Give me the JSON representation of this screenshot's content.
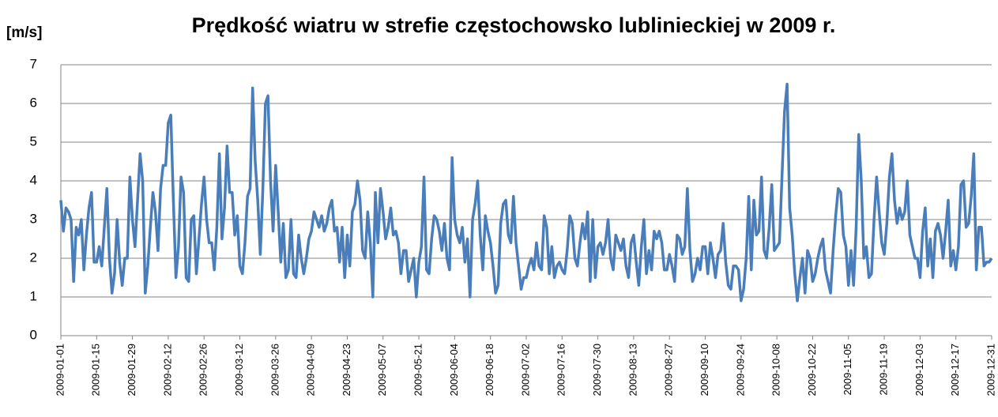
{
  "chart_data": {
    "type": "line",
    "title": "Prędkość wiatru w strefie częstochowsko lublinieckiej w 2009 r.",
    "y_label": "[m/s]",
    "categories": [
      "2009-01-01",
      null,
      null,
      null,
      null,
      null,
      null,
      null,
      null,
      null,
      null,
      null,
      null,
      null,
      "2009-01-15",
      null,
      null,
      null,
      null,
      null,
      null,
      null,
      null,
      null,
      null,
      null,
      null,
      null,
      "2009-01-29",
      null,
      null,
      null,
      null,
      null,
      null,
      null,
      null,
      null,
      null,
      null,
      null,
      null,
      "2009-02-12",
      null,
      null,
      null,
      null,
      null,
      null,
      null,
      null,
      null,
      null,
      null,
      null,
      null,
      "2009-02-26",
      null,
      null,
      null,
      null,
      null,
      null,
      null,
      null,
      null,
      null,
      null,
      null,
      null,
      "2009-03-12",
      null,
      null,
      null,
      null,
      null,
      null,
      null,
      null,
      null,
      null,
      null,
      null,
      null,
      "2009-03-26",
      null,
      null,
      null,
      null,
      null,
      null,
      null,
      null,
      null,
      null,
      null,
      null,
      null,
      "2009-04-09",
      null,
      null,
      null,
      null,
      null,
      null,
      null,
      null,
      null,
      null,
      null,
      null,
      null,
      "2009-04-23",
      null,
      null,
      null,
      null,
      null,
      null,
      null,
      null,
      null,
      null,
      null,
      null,
      null,
      "2009-05-07",
      null,
      null,
      null,
      null,
      null,
      null,
      null,
      null,
      null,
      null,
      null,
      null,
      null,
      "2009-05-21",
      null,
      null,
      null,
      null,
      null,
      null,
      null,
      null,
      null,
      null,
      null,
      null,
      null,
      "2009-06-04",
      null,
      null,
      null,
      null,
      null,
      null,
      null,
      null,
      null,
      null,
      null,
      null,
      null,
      "2009-06-18",
      null,
      null,
      null,
      null,
      null,
      null,
      null,
      null,
      null,
      null,
      null,
      null,
      null,
      "2009-07-02",
      null,
      null,
      null,
      null,
      null,
      null,
      null,
      null,
      null,
      null,
      null,
      null,
      null,
      "2009-07-16",
      null,
      null,
      null,
      null,
      null,
      null,
      null,
      null,
      null,
      null,
      null,
      null,
      null,
      "2009-07-30",
      null,
      null,
      null,
      null,
      null,
      null,
      null,
      null,
      null,
      null,
      null,
      null,
      null,
      "2009-08-13",
      null,
      null,
      null,
      null,
      null,
      null,
      null,
      null,
      null,
      null,
      null,
      null,
      null,
      "2009-08-27",
      null,
      null,
      null,
      null,
      null,
      null,
      null,
      null,
      null,
      null,
      null,
      null,
      null,
      "2009-09-10",
      null,
      null,
      null,
      null,
      null,
      null,
      null,
      null,
      null,
      null,
      null,
      null,
      null,
      "2009-09-24",
      null,
      null,
      null,
      null,
      null,
      null,
      null,
      null,
      null,
      null,
      null,
      null,
      null,
      "2009-10-08",
      null,
      null,
      null,
      null,
      null,
      null,
      null,
      null,
      null,
      null,
      null,
      null,
      null,
      "2009-10-22",
      null,
      null,
      null,
      null,
      null,
      null,
      null,
      null,
      null,
      null,
      null,
      null,
      null,
      "2009-11-05",
      null,
      null,
      null,
      null,
      null,
      null,
      null,
      null,
      null,
      null,
      null,
      null,
      null,
      "2009-11-19",
      null,
      null,
      null,
      null,
      null,
      null,
      null,
      null,
      null,
      null,
      null,
      null,
      null,
      "2009-12-03",
      null,
      null,
      null,
      null,
      null,
      null,
      null,
      null,
      null,
      null,
      null,
      null,
      null,
      "2009-12-17",
      null,
      null,
      null,
      null,
      null,
      null,
      null,
      null,
      null,
      null,
      null,
      null,
      null,
      "2009-12-31"
    ],
    "values": [
      3.5,
      2.7,
      3.3,
      3.2,
      3.0,
      1.4,
      2.8,
      2.6,
      3.0,
      1.7,
      2.6,
      3.3,
      3.7,
      1.9,
      1.9,
      2.3,
      1.8,
      2.8,
      3.8,
      2.0,
      1.1,
      1.6,
      3.0,
      1.9,
      1.3,
      2.0,
      2.0,
      4.1,
      3.0,
      2.3,
      3.5,
      4.7,
      4.0,
      1.1,
      1.8,
      2.8,
      3.7,
      3.2,
      2.2,
      3.8,
      4.4,
      4.4,
      5.5,
      5.7,
      3.5,
      1.5,
      2.3,
      4.1,
      3.7,
      1.5,
      1.4,
      3.0,
      3.1,
      1.6,
      2.5,
      3.4,
      4.1,
      3.0,
      2.4,
      2.4,
      1.7,
      2.8,
      4.7,
      2.5,
      3.3,
      4.9,
      3.7,
      3.7,
      2.6,
      3.1,
      1.8,
      1.6,
      2.4,
      3.6,
      3.8,
      6.4,
      4.5,
      3.5,
      2.1,
      3.8,
      6.0,
      6.2,
      4.0,
      2.7,
      4.4,
      3.2,
      1.9,
      2.9,
      1.5,
      1.7,
      3.0,
      1.6,
      1.5,
      2.6,
      2.0,
      1.6,
      2.0,
      2.5,
      2.7,
      3.2,
      3.0,
      2.8,
      3.1,
      2.7,
      2.9,
      3.3,
      3.5,
      2.7,
      2.8,
      1.9,
      2.8,
      1.5,
      2.6,
      1.8,
      3.2,
      3.4,
      4.0,
      3.5,
      2.2,
      2.0,
      3.2,
      2.4,
      1.0,
      3.7,
      2.4,
      3.8,
      3.2,
      2.5,
      2.8,
      3.3,
      2.6,
      2.7,
      2.4,
      1.6,
      2.2,
      2.2,
      1.4,
      1.7,
      2.0,
      1.0,
      1.9,
      2.3,
      4.1,
      1.7,
      1.6,
      2.5,
      3.1,
      3.0,
      2.7,
      2.2,
      2.9,
      2.0,
      1.7,
      4.6,
      3.0,
      2.6,
      2.4,
      2.8,
      1.9,
      2.5,
      1.0,
      3.0,
      3.4,
      4.0,
      2.6,
      1.7,
      3.1,
      2.7,
      2.4,
      1.8,
      1.1,
      1.3,
      2.9,
      3.4,
      3.5,
      2.6,
      2.4,
      3.6,
      2.4,
      1.8,
      1.2,
      1.5,
      1.5,
      1.8,
      2.0,
      1.7,
      2.4,
      1.8,
      1.7,
      3.1,
      2.8,
      1.6,
      2.3,
      1.5,
      1.8,
      1.9,
      1.7,
      1.6,
      2.2,
      3.1,
      2.9,
      2.0,
      1.8,
      2.4,
      2.9,
      2.5,
      3.2,
      1.4,
      3.0,
      1.5,
      2.3,
      2.4,
      2.1,
      2.4,
      3.0,
      2.0,
      1.7,
      2.6,
      2.4,
      2.2,
      2.5,
      1.8,
      1.5,
      2.4,
      2.6,
      1.9,
      1.3,
      2.3,
      3.0,
      1.6,
      2.2,
      1.7,
      2.7,
      2.5,
      2.7,
      2.4,
      1.7,
      1.7,
      2.1,
      1.8,
      1.4,
      2.6,
      2.5,
      2.1,
      2.3,
      3.8,
      2.2,
      1.4,
      1.6,
      2.0,
      1.7,
      2.3,
      2.3,
      1.6,
      2.4,
      2.0,
      1.5,
      2.1,
      2.2,
      2.9,
      1.9,
      1.3,
      1.2,
      1.8,
      1.8,
      1.7,
      0.9,
      1.2,
      2.0,
      3.6,
      1.7,
      3.5,
      2.6,
      2.7,
      4.1,
      2.2,
      2.0,
      2.8,
      3.9,
      2.2,
      2.3,
      2.4,
      4.1,
      5.8,
      6.5,
      3.3,
      2.6,
      1.6,
      0.9,
      1.5,
      2.0,
      1.1,
      2.2,
      2.0,
      1.4,
      1.6,
      2.0,
      2.3,
      2.5,
      1.7,
      1.4,
      1.1,
      2.2,
      3.1,
      3.8,
      3.7,
      2.6,
      2.3,
      1.3,
      2.2,
      1.3,
      2.8,
      5.2,
      4.0,
      2.0,
      2.3,
      1.5,
      1.6,
      3.0,
      4.1,
      3.2,
      2.4,
      2.1,
      2.9,
      4.1,
      4.7,
      3.5,
      2.9,
      3.3,
      3.0,
      3.2,
      4.0,
      2.6,
      2.3,
      2.0,
      2.0,
      1.5,
      2.7,
      3.3,
      1.8,
      2.5,
      1.5,
      2.7,
      2.9,
      2.6,
      2.0,
      2.7,
      3.5,
      1.8,
      2.2,
      1.7,
      2.3,
      3.9,
      4.0,
      2.8,
      2.9,
      3.6,
      4.7,
      1.7,
      2.8,
      2.8,
      1.8,
      1.9,
      1.9,
      2.0
    ],
    "color": "#4a7ebb",
    "ylim": [
      0,
      7
    ],
    "yticks": [
      0,
      1,
      2,
      3,
      4,
      5,
      6,
      7
    ],
    "grid": true
  }
}
